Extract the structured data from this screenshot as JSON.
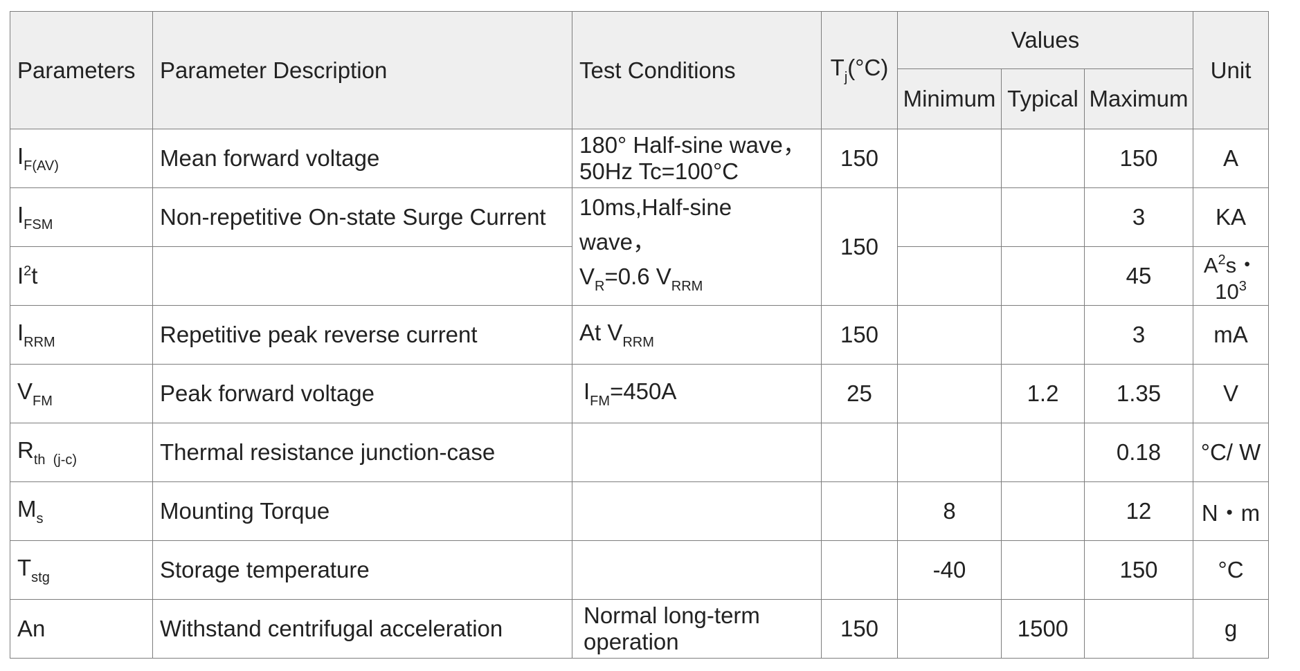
{
  "header": {
    "parameters": "Parameters",
    "description": "Parameter Description",
    "conditions": "Test Conditions",
    "tj": {
      "main": "T",
      "sub": "j",
      "unit": "(°C)"
    },
    "values": "Values",
    "minimum": "Minimum",
    "typical": "Typical",
    "maximum": "Maximum",
    "unit": "Unit"
  },
  "rows": [
    {
      "sym": "I",
      "sub": "F(AV)",
      "desc": "Mean forward voltage",
      "cond1": "180° Half-sine wave，",
      "cond2": "50Hz  Tc=100°C",
      "tj": "150",
      "min": "",
      "typ": "",
      "max": "150",
      "unit": "A"
    },
    {
      "sym": "I",
      "sub": "FSM",
      "desc": "Non-repetitive On-state Surge Current",
      "cond1": "10ms,Half-sine wave，",
      "cond2a": "V",
      "cond2a_sub": "R",
      "cond2b": "=0.6 V",
      "cond2b_sub": "RRM",
      "tj": "150",
      "min": "",
      "typ": "",
      "max": "3",
      "unit": "KA"
    },
    {
      "sym": "I",
      "sup": "2",
      "sym2": "t",
      "desc": "",
      "min": "",
      "typ": "",
      "max": "45",
      "unit_a": "A",
      "unit_sup1": "2",
      "unit_b": "s・10",
      "unit_sup2": "3"
    },
    {
      "sym": "I",
      "sub": "RRM",
      "desc": "Repetitive peak reverse current",
      "cond1": "At V",
      "cond1_sub": "RRM",
      "tj": "150",
      "min": "",
      "typ": "",
      "max": "3",
      "unit": "mA"
    },
    {
      "sym": "V",
      "sub": "FM",
      "desc": "Peak forward voltage",
      "cond1": "I",
      "cond1_sub": "FM",
      "cond1_tail": "=450A",
      "tj": "25",
      "min": "",
      "typ": "1.2",
      "max": "1.35",
      "unit": "V"
    },
    {
      "sym": "R",
      "sub": "th  (j-c)",
      "desc": "Thermal resistance junction-case",
      "tj": "",
      "min": "",
      "typ": "",
      "max": "0.18",
      "unit": "°C/ W"
    },
    {
      "sym": "M",
      "sub": "s",
      "desc": "Mounting Torque",
      "tj": "",
      "min": "8",
      "typ": "",
      "max": "12",
      "unit": "N・m"
    },
    {
      "sym": "T",
      "sub": "stg",
      "desc": "Storage temperature",
      "tj": "",
      "min": "-40",
      "typ": "",
      "max": "150",
      "unit": "°C"
    },
    {
      "sym": "An",
      "desc": "Withstand centrifugal acceleration",
      "cond1": "Normal long-term",
      "cond2": "operation",
      "tj": "150",
      "min": "",
      "typ": "1500",
      "max": "",
      "unit": "g"
    }
  ]
}
